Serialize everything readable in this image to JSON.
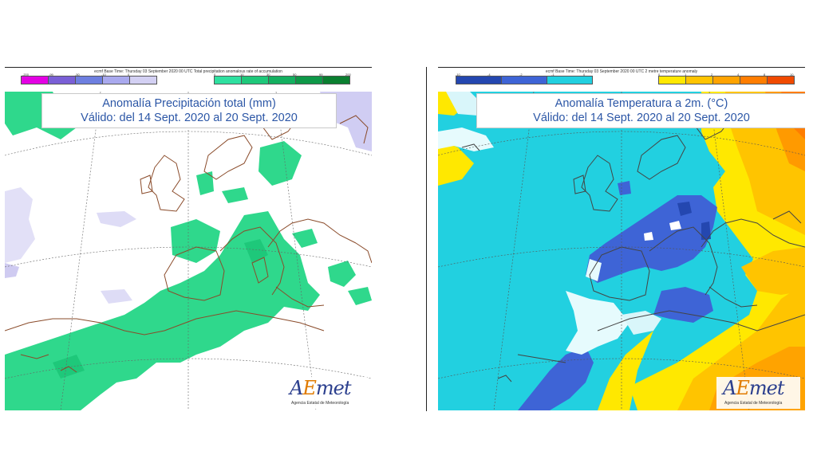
{
  "precip_panel": {
    "meta": "ecmf  Base Time: Thursday 03 September 2020 00 UTC Total precipitation anomalous rate of accumulation",
    "title_line1": "Anomalía Precipitación total (mm)",
    "title_line2": "Válido: del 14 Sept. 2020 al 20 Sept. 2020",
    "legend_neg_colors": [
      "#e400e4",
      "#7a5fd6",
      "#6e7fe0",
      "#a9a9ee",
      "#d3d0f3"
    ],
    "legend_pos_colors": [
      "#2fe0a0",
      "#1ec87a",
      "#14b060",
      "#0e9848",
      "#0a7f30"
    ],
    "legend_neg_ticks": [
      "-200",
      "-99",
      "-50",
      "-10",
      "0"
    ],
    "legend_pos_ticks": [
      "0",
      "10",
      "30",
      "50",
      "99",
      "200"
    ]
  },
  "temp_panel": {
    "meta": "ecmf  Base Time: Thursday 03 September 2020 00 UTC 2 metre temperature anomaly",
    "title_line1": "Anomalía Temperatura a 2m. (°C)",
    "title_line2": "Válido: del 14 Sept. 2020 al 20 Sept. 2020",
    "legend_neg_colors": [
      "#2447b0",
      "#3e64d6",
      "#22d0e0"
    ],
    "legend_pos_colors": [
      "#ffe800",
      "#ffc400",
      "#ffa300",
      "#ff7d00",
      "#f04a00"
    ],
    "legend_neg_ticks": [
      "-10",
      "-4",
      "-2",
      "-1",
      "0"
    ],
    "legend_pos_ticks": [
      "0",
      "1",
      "2",
      "4",
      "8",
      "10"
    ]
  },
  "logo": {
    "name_a": "A",
    "name_e": "E",
    "name_rest": "met",
    "subtitle": "Agencia Estatal de Meteorología"
  }
}
